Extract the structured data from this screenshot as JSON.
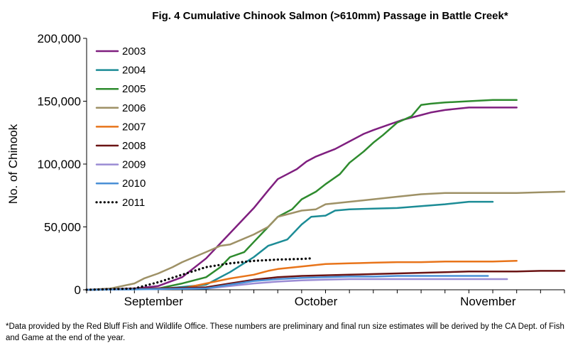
{
  "chart_data": {
    "type": "line",
    "title": "Fig. 4 Cumulative Chinook Salmon (>610mm) Passage in Battle Creek*",
    "xlabel": "",
    "ylabel": "No. of Chinook",
    "ylim": [
      0,
      200000
    ],
    "xlim": [
      0,
      100
    ],
    "yticks": [
      "0",
      "50,000",
      "100,000",
      "150,000",
      "200,000"
    ],
    "yticks_values": [
      0,
      50000,
      100000,
      150000,
      200000
    ],
    "xticks": [
      {
        "label": "September",
        "x": 14
      },
      {
        "label": "October",
        "x": 48
      },
      {
        "label": "November",
        "x": 84
      }
    ],
    "grid": false,
    "legend": "top-left",
    "series": [
      {
        "name": "2003",
        "color": "#7F1F7F",
        "dash": false,
        "x": [
          0,
          10,
          15,
          20,
          25,
          30,
          35,
          38,
          40,
          42,
          44,
          46,
          48,
          50,
          52,
          55,
          58,
          60,
          63,
          66,
          68,
          70,
          72,
          75,
          80,
          85,
          90
        ],
        "values": [
          0,
          1000,
          3000,
          10000,
          25000,
          45000,
          65000,
          79000,
          88000,
          92000,
          96000,
          102000,
          106000,
          109000,
          112000,
          118000,
          124000,
          127000,
          131000,
          135000,
          137000,
          139000,
          141000,
          143000,
          145000,
          145000,
          145000
        ]
      },
      {
        "name": "2004",
        "color": "#1C8C96",
        "dash": false,
        "x": [
          0,
          15,
          25,
          30,
          35,
          38,
          42,
          45,
          47,
          50,
          52,
          55,
          60,
          65,
          70,
          75,
          80,
          85
        ],
        "values": [
          0,
          500,
          4000,
          14000,
          26000,
          35000,
          40000,
          52000,
          58000,
          59000,
          63000,
          64000,
          64500,
          65000,
          66500,
          68000,
          70000,
          70000
        ]
      },
      {
        "name": "2005",
        "color": "#2E8B2E",
        "dash": false,
        "x": [
          0,
          15,
          20,
          25,
          28,
          30,
          33,
          35,
          38,
          40,
          43,
          45,
          48,
          50,
          53,
          55,
          58,
          60,
          62,
          65,
          68,
          70,
          72,
          75,
          80,
          85,
          90
        ],
        "values": [
          0,
          1000,
          5000,
          10000,
          18000,
          26000,
          30000,
          38000,
          50000,
          58000,
          64000,
          72000,
          78000,
          84000,
          92000,
          101000,
          110000,
          117000,
          123000,
          133000,
          138000,
          147000,
          148000,
          149000,
          150000,
          151000,
          151000
        ]
      },
      {
        "name": "2006",
        "color": "#9E9166",
        "dash": false,
        "x": [
          0,
          5,
          10,
          12,
          15,
          18,
          20,
          25,
          28,
          30,
          35,
          38,
          40,
          45,
          48,
          50,
          55,
          60,
          65,
          70,
          75,
          80,
          85,
          90,
          95,
          100
        ],
        "values": [
          0,
          1000,
          5000,
          9000,
          13000,
          18000,
          22000,
          30000,
          35000,
          36000,
          44000,
          50000,
          58000,
          63000,
          64000,
          68000,
          70000,
          72000,
          74000,
          76000,
          77000,
          77000,
          77000,
          77000,
          77500,
          78000
        ]
      },
      {
        "name": "2007",
        "color": "#E8741A",
        "dash": false,
        "x": [
          0,
          20,
          25,
          30,
          35,
          38,
          40,
          45,
          50,
          55,
          60,
          65,
          70,
          75,
          80,
          85,
          90
        ],
        "values": [
          0,
          1000,
          5000,
          9000,
          12000,
          15000,
          16500,
          18500,
          20500,
          21000,
          21500,
          22000,
          22000,
          22500,
          22500,
          22500,
          23000
        ]
      },
      {
        "name": "2008",
        "color": "#6B1414",
        "dash": false,
        "x": [
          0,
          25,
          30,
          35,
          40,
          45,
          50,
          55,
          60,
          65,
          70,
          75,
          80,
          85,
          90,
          95,
          100
        ],
        "values": [
          0,
          2000,
          5000,
          8000,
          10000,
          11000,
          11500,
          12000,
          12500,
          13000,
          13500,
          14000,
          14500,
          14500,
          14500,
          15000,
          15000
        ]
      },
      {
        "name": "2009",
        "color": "#9B8CD4",
        "dash": false,
        "x": [
          0,
          25,
          30,
          35,
          40,
          45,
          50,
          55,
          60,
          65,
          70,
          75,
          80,
          85,
          88
        ],
        "values": [
          0,
          1000,
          3000,
          5000,
          6500,
          7500,
          8000,
          8500,
          8500,
          8500,
          8500,
          8500,
          8500,
          8500,
          8500
        ]
      },
      {
        "name": "2010",
        "color": "#4A8FD6",
        "dash": false,
        "x": [
          0,
          25,
          30,
          35,
          40,
          45,
          50,
          55,
          60,
          65,
          70,
          75,
          80,
          84
        ],
        "values": [
          0,
          1000,
          4000,
          7000,
          8500,
          9500,
          10000,
          10500,
          10500,
          11000,
          11000,
          11000,
          11000,
          11000
        ]
      },
      {
        "name": "2011",
        "color": "#000000",
        "dash": true,
        "x": [
          0,
          10,
          15,
          20,
          25,
          30,
          35,
          40,
          45,
          47
        ],
        "values": [
          0,
          1000,
          6000,
          12000,
          18000,
          21000,
          23000,
          24000,
          24500,
          25000
        ]
      }
    ]
  },
  "footnote": "*Data provided by the Red Bluff Fish and Wildlife Office.  These numbers are preliminary and final run size estimates will be derived by the CA Dept. of Fish and Game at the end of the year."
}
